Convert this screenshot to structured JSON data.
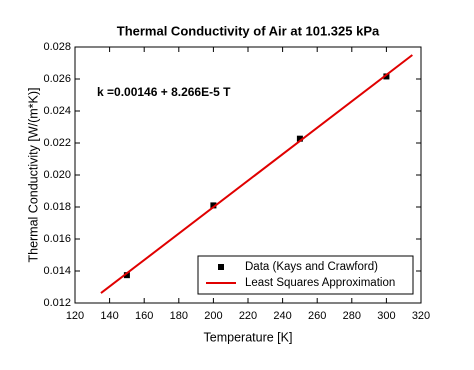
{
  "chart_data": {
    "type": "scatter",
    "title": "Thermal Conductivity of Air at 101.325 kPa",
    "annotation": "k =0.00146 + 8.266E-5 T",
    "x_label": "Temperature [K]",
    "y_label": "Thermal Conductivity [W/(m*K)]",
    "xlim": [
      120,
      320
    ],
    "xticks": [
      120,
      140,
      160,
      180,
      200,
      220,
      240,
      260,
      280,
      300,
      320
    ],
    "ylim": [
      0.012,
      0.028
    ],
    "yticks": [
      0.012,
      0.014,
      0.016,
      0.018,
      {
        "value": 0.02,
        "label": "0.020"
      },
      0.022,
      0.024,
      0.026,
      0.028
    ],
    "legend": "lower right",
    "series": [
      {
        "name": "Data (Kays and Crawford)",
        "type": "scatter",
        "color": "#000000",
        "x": [
          150,
          200,
          250,
          300
        ],
        "values": [
          0.01374,
          0.0181,
          0.02227,
          0.02616
        ]
      },
      {
        "name": "Least Squares Approximation",
        "type": "line",
        "color": "#e00000",
        "x": [
          135,
          315
        ],
        "values": [
          0.01262,
          0.0275
        ]
      }
    ]
  }
}
